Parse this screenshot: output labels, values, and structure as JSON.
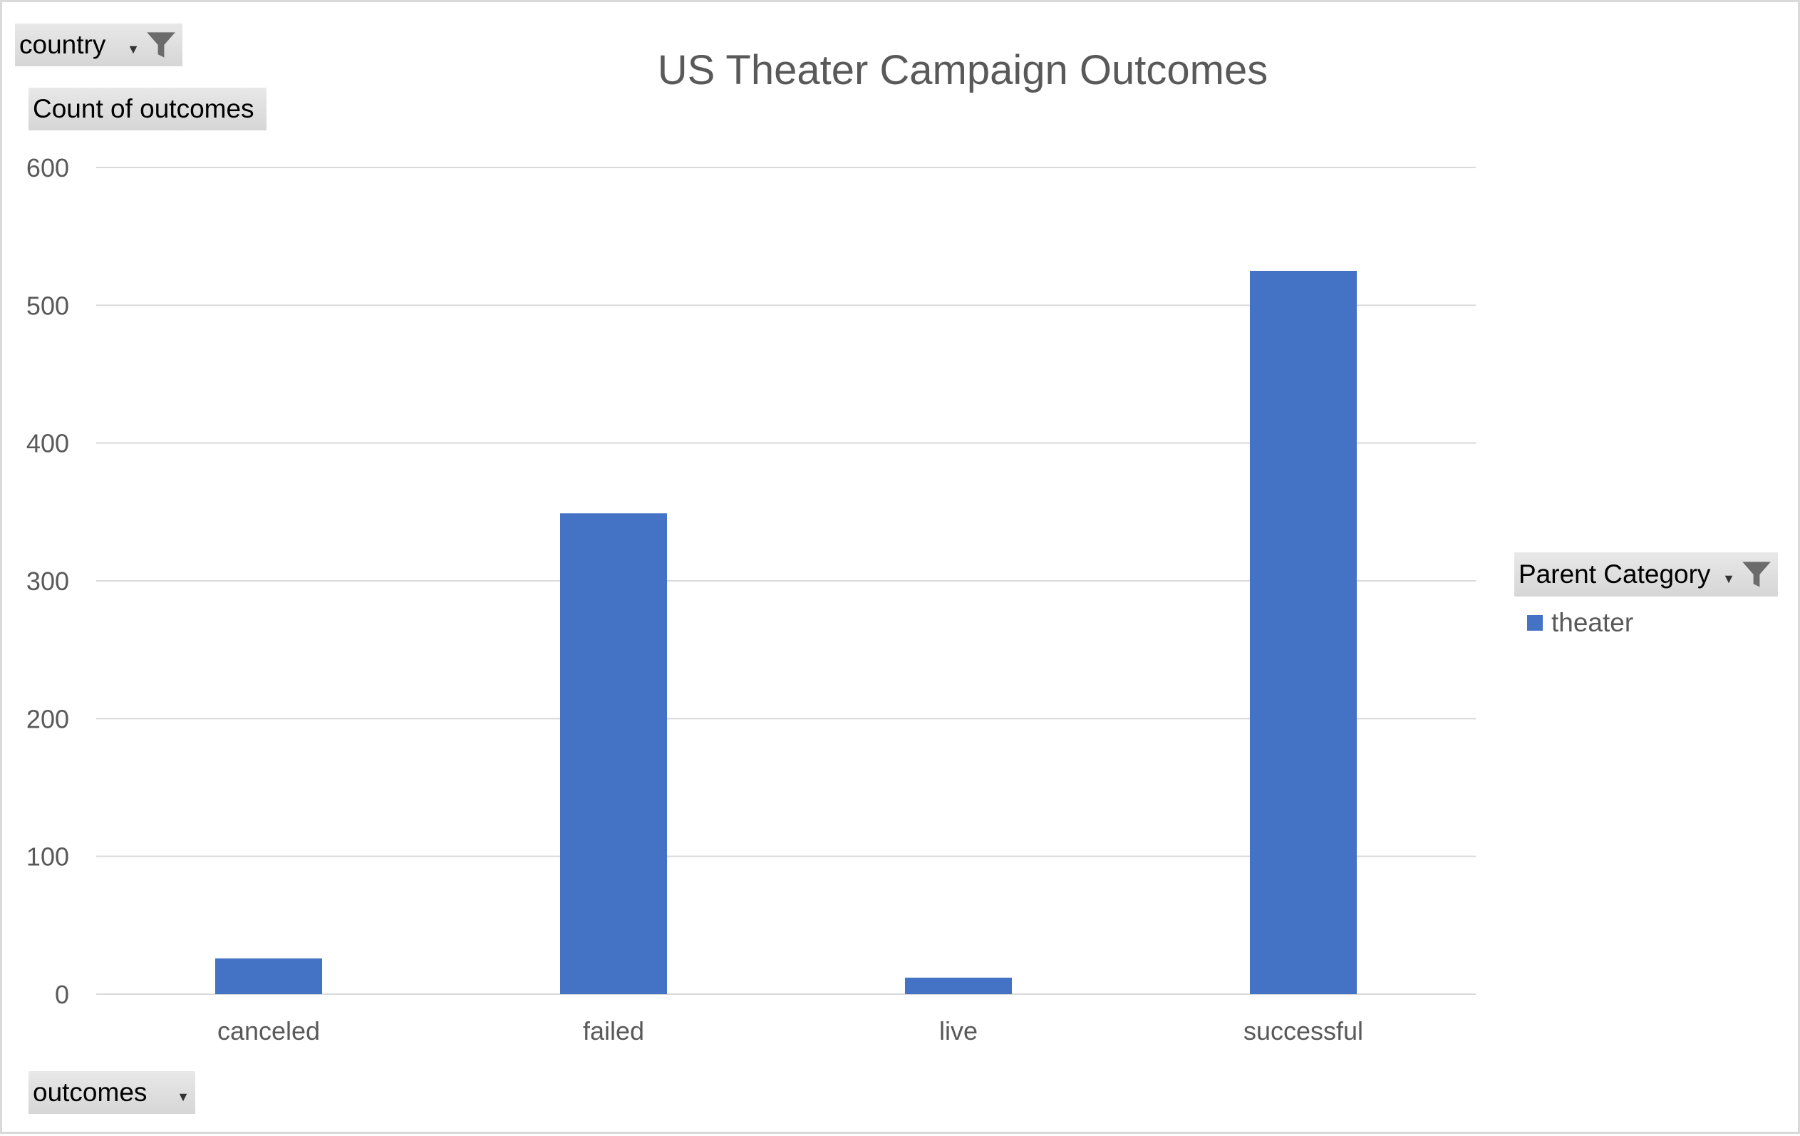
{
  "colors": {
    "bar": "#4472c4",
    "gridline": "#d9d9d9",
    "axis_text": "#595959",
    "title_text": "#595959",
    "button_bg": "#dcdcdc",
    "filter_icon": "#6b6b6b"
  },
  "pivot_buttons": {
    "country": {
      "label": "country",
      "icon": "filter-icon"
    },
    "value_field": {
      "label": "Count of outcomes"
    },
    "axis_field": {
      "label": "outcomes",
      "icon": "dropdown-arrow"
    },
    "legend_field": {
      "label": "Parent Category",
      "icon": "filter-icon"
    }
  },
  "chart_data": {
    "type": "bar",
    "title": "US Theater Campaign Outcomes",
    "xlabel": "",
    "ylabel": "",
    "categories": [
      "canceled",
      "failed",
      "live",
      "successful"
    ],
    "series": [
      {
        "name": "theater",
        "values": [
          26,
          349,
          12,
          525
        ]
      }
    ],
    "ylim": [
      0,
      600
    ],
    "yticks": [
      0,
      100,
      200,
      300,
      400,
      500,
      600
    ],
    "grid": true,
    "legend_position": "right"
  }
}
